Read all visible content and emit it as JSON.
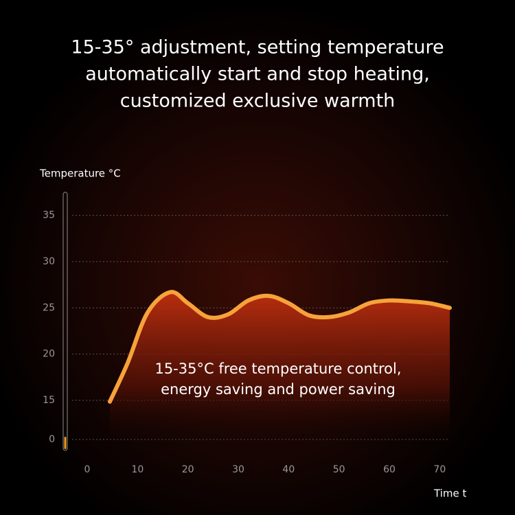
{
  "chart_data": {
    "type": "line",
    "title": [
      "15-35° adjustment, setting temperature",
      "automatically start and stop heating,",
      "customized exclusive warmth"
    ],
    "ylabel": "Temperature °C",
    "xlabel": "Time t",
    "annotation": [
      "15-35°C free temperature control,",
      "energy saving and power saving"
    ],
    "series": [
      {
        "color": "#f7a23a",
        "x": [
          4.5,
          8,
          12,
          16.5,
          20,
          24,
          28,
          32,
          36,
          40,
          44,
          48,
          52,
          56,
          60,
          64,
          68,
          72
        ],
        "values": [
          14.5,
          19,
          24.5,
          26.7,
          25.5,
          24,
          24.3,
          25.8,
          26.3,
          25.5,
          24.2,
          24,
          24.5,
          25.5,
          25.8,
          25.7,
          25.5,
          25
        ]
      }
    ],
    "xlim": [
      -3,
      72
    ],
    "xticks": [
      0,
      10,
      20,
      30,
      40,
      50,
      60,
      70
    ],
    "ylim": [
      0,
      37.5
    ],
    "yticks": [
      0,
      15,
      20,
      25,
      30,
      35
    ],
    "y_axis_break": 15,
    "grid": true
  }
}
